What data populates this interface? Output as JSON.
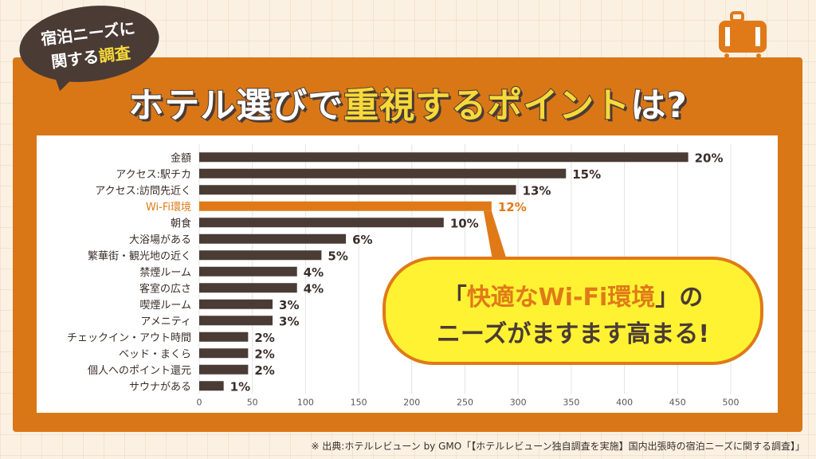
{
  "badge": {
    "line1": "宿泊ニーズに",
    "line2a": "関する",
    "line2b": "調査"
  },
  "title": {
    "part1": "ホテル選びで",
    "highlight": "重視するポイント",
    "part2": "は?"
  },
  "callout": {
    "line1a": "「",
    "line1b": "快適なWi-Fi環境",
    "line1c": "」の",
    "line2": "ニーズがますます高まる!"
  },
  "source": "※ 出典:ホテルレビューン by GMO「【ホテルレビューン独自調査を実施】国内出張時の宿泊ニーズに関する調査】」",
  "colors": {
    "bar": "#4a3b35",
    "highlight": "#e07a18",
    "frame": "#d97717",
    "callout_bg": "#fff233"
  },
  "chart_data": {
    "type": "bar",
    "orientation": "horizontal",
    "categories": [
      "金額",
      "アクセス:駅チカ",
      "アクセス:訪問先近く",
      "Wi-Fi環境",
      "朝食",
      "大浴場がある",
      "繁華街・観光地の近く",
      "禁煙ルーム",
      "客室の広さ",
      "喫煙ルーム",
      "アメニティ",
      "チェックイン・アウト時間",
      "ベッド・まくら",
      "個人へのポイント還元",
      "サウナがある"
    ],
    "values": [
      460,
      345,
      298,
      275,
      230,
      138,
      115,
      92,
      92,
      69,
      69,
      46,
      46,
      46,
      23
    ],
    "labels": [
      "20%",
      "15%",
      "13%",
      "12%",
      "10%",
      "6%",
      "5%",
      "4%",
      "4%",
      "3%",
      "3%",
      "2%",
      "2%",
      "2%",
      "1%"
    ],
    "highlight_index": 3,
    "xlim": [
      0,
      500
    ],
    "xticks": [
      0,
      50,
      100,
      150,
      200,
      250,
      300,
      350,
      400,
      450,
      500
    ],
    "grid": true
  }
}
